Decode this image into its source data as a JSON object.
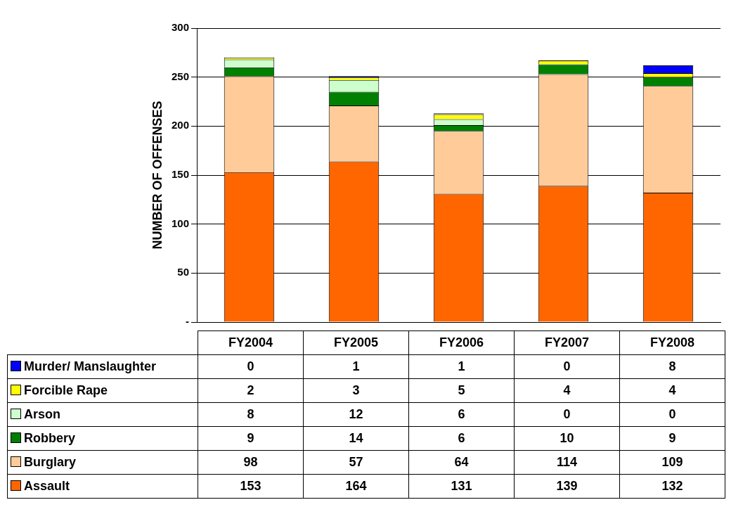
{
  "chart_data": {
    "type": "bar",
    "stacked": true,
    "ylabel": "NUMBER OF OFFENSES",
    "categories": [
      "FY2004",
      "FY2005",
      "FY2006",
      "FY2007",
      "FY2008"
    ],
    "series": [
      {
        "name": "Assault",
        "color": "#ff6600",
        "values": [
          153,
          164,
          131,
          139,
          132
        ]
      },
      {
        "name": "Burglary",
        "color": "#ffcc99",
        "values": [
          98,
          57,
          64,
          114,
          109
        ]
      },
      {
        "name": "Robbery",
        "color": "#008000",
        "values": [
          9,
          14,
          6,
          10,
          9
        ]
      },
      {
        "name": "Arson",
        "color": "#ccffcc",
        "values": [
          8,
          12,
          6,
          0,
          0
        ]
      },
      {
        "name": "Forcible Rape",
        "color": "#ffff00",
        "values": [
          2,
          3,
          5,
          4,
          4
        ]
      },
      {
        "name": "Murder/ Manslaughter",
        "color": "#0000ff",
        "values": [
          0,
          1,
          1,
          0,
          8
        ]
      }
    ],
    "ylim": [
      0,
      300
    ],
    "yticks": [
      {
        "value": 0,
        "label": "-"
      },
      50,
      100,
      150,
      200,
      250,
      300
    ],
    "grid": "y",
    "legend": "bottom",
    "data_labels": true,
    "tick_labels": "y"
  }
}
